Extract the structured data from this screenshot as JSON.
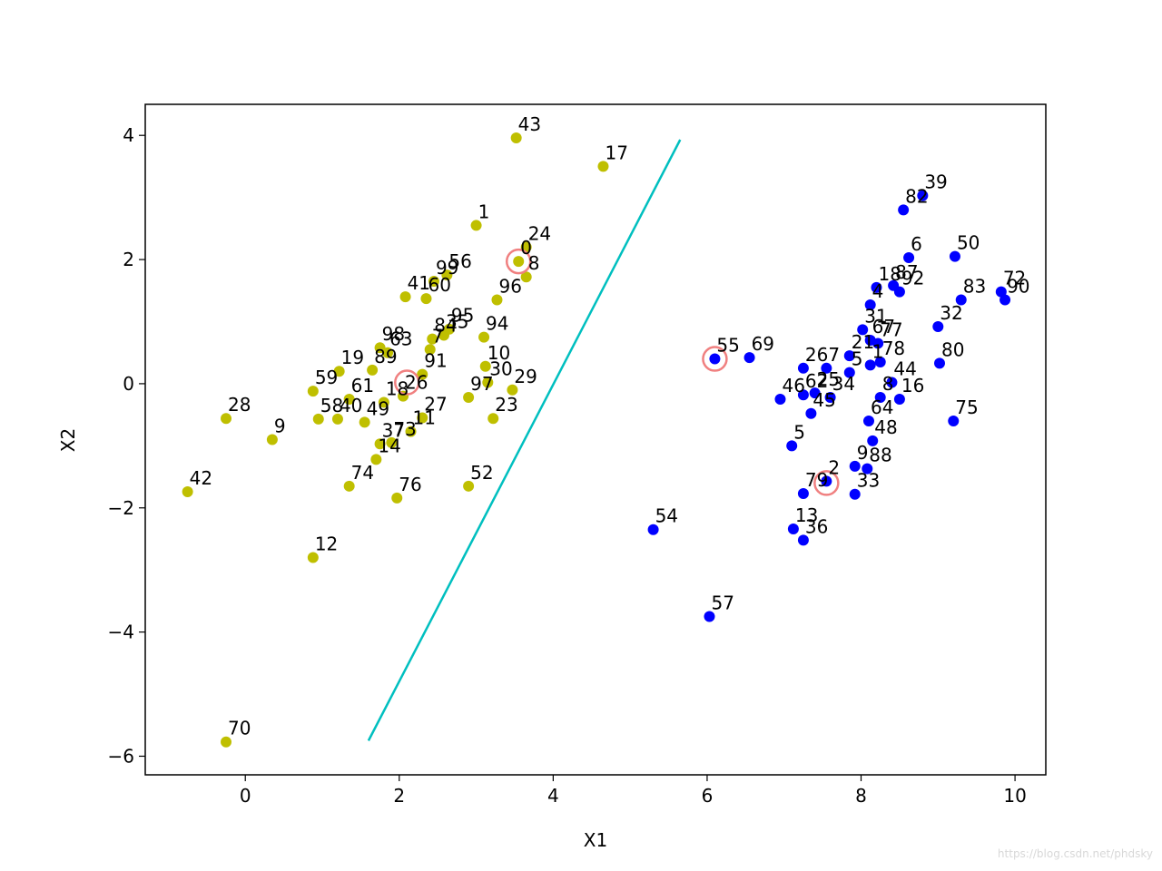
{
  "watermark": "https://blog.csdn.net/phdsky",
  "chart_data": {
    "type": "scatter",
    "title": "",
    "xlabel": "X1",
    "ylabel": "X2",
    "xlim": [
      -1.3,
      10.4
    ],
    "ylim": [
      -6.3,
      4.5
    ],
    "xticks": [
      0,
      2,
      4,
      6,
      8,
      10
    ],
    "yticks": [
      -6,
      -4,
      -2,
      0,
      2,
      4
    ],
    "grid": false,
    "colors": {
      "class_a": "#bfbf00",
      "class_b": "#0000ff",
      "line": "#00bfbf",
      "support": "#f08080"
    },
    "series": [
      {
        "class": "a",
        "points": [
          {
            "label": "0",
            "x": 3.55,
            "y": 1.97
          },
          {
            "label": "1",
            "x": 3.0,
            "y": 2.55
          },
          {
            "label": "24",
            "x": 3.65,
            "y": 2.2
          },
          {
            "label": "8",
            "x": 3.65,
            "y": 1.72
          },
          {
            "label": "43",
            "x": 3.52,
            "y": 3.96
          },
          {
            "label": "17",
            "x": 4.65,
            "y": 3.5
          },
          {
            "label": "56",
            "x": 2.62,
            "y": 1.75
          },
          {
            "label": "99",
            "x": 2.45,
            "y": 1.65
          },
          {
            "label": "41",
            "x": 2.08,
            "y": 1.4
          },
          {
            "label": "60",
            "x": 2.35,
            "y": 1.37
          },
          {
            "label": "96",
            "x": 3.27,
            "y": 1.35
          },
          {
            "label": "95",
            "x": 2.65,
            "y": 0.88
          },
          {
            "label": "35",
            "x": 2.58,
            "y": 0.78
          },
          {
            "label": "84",
            "x": 2.43,
            "y": 0.72
          },
          {
            "label": "94",
            "x": 3.1,
            "y": 0.75
          },
          {
            "label": "98",
            "x": 1.75,
            "y": 0.58
          },
          {
            "label": "63",
            "x": 1.85,
            "y": 0.5
          },
          {
            "label": "7",
            "x": 2.4,
            "y": 0.55
          },
          {
            "label": "89",
            "x": 1.65,
            "y": 0.22
          },
          {
            "label": "10",
            "x": 3.12,
            "y": 0.28
          },
          {
            "label": "19",
            "x": 1.22,
            "y": 0.2
          },
          {
            "label": "59",
            "x": 0.88,
            "y": -0.12
          },
          {
            "label": "91",
            "x": 2.3,
            "y": 0.15
          },
          {
            "label": "30",
            "x": 3.15,
            "y": 0.02
          },
          {
            "label": "29",
            "x": 3.47,
            "y": -0.1
          },
          {
            "label": "97",
            "x": 2.9,
            "y": -0.22
          },
          {
            "label": "61",
            "x": 1.35,
            "y": -0.25
          },
          {
            "label": "18",
            "x": 1.8,
            "y": -0.3
          },
          {
            "label": "26",
            "x": 2.05,
            "y": -0.2
          },
          {
            "label": "27",
            "x": 2.3,
            "y": -0.55
          },
          {
            "label": "23",
            "x": 3.22,
            "y": -0.56
          },
          {
            "label": "58",
            "x": 0.95,
            "y": -0.57
          },
          {
            "label": "40",
            "x": 1.2,
            "y": -0.57
          },
          {
            "label": "49",
            "x": 1.55,
            "y": -0.62
          },
          {
            "label": "11",
            "x": 2.15,
            "y": -0.77
          },
          {
            "label": "28",
            "x": -0.25,
            "y": -0.56
          },
          {
            "label": "9",
            "x": 0.35,
            "y": -0.9
          },
          {
            "label": "37",
            "x": 1.75,
            "y": -0.97
          },
          {
            "label": "73",
            "x": 1.9,
            "y": -0.95
          },
          {
            "label": "14",
            "x": 1.7,
            "y": -1.22
          },
          {
            "label": "42",
            "x": -0.75,
            "y": -1.74
          },
          {
            "label": "74",
            "x": 1.35,
            "y": -1.65
          },
          {
            "label": "76",
            "x": 1.97,
            "y": -1.84
          },
          {
            "label": "52",
            "x": 2.9,
            "y": -1.65
          },
          {
            "label": "12",
            "x": 0.88,
            "y": -2.8
          },
          {
            "label": "70",
            "x": -0.25,
            "y": -5.77
          }
        ]
      },
      {
        "class": "b",
        "points": [
          {
            "label": "39",
            "x": 8.8,
            "y": 3.03
          },
          {
            "label": "82",
            "x": 8.55,
            "y": 2.8
          },
          {
            "label": "6",
            "x": 8.62,
            "y": 2.03
          },
          {
            "label": "50",
            "x": 9.22,
            "y": 2.05
          },
          {
            "label": "18",
            "x": 8.2,
            "y": 1.55
          },
          {
            "label": "87",
            "x": 8.42,
            "y": 1.58
          },
          {
            "label": "92",
            "x": 8.5,
            "y": 1.48
          },
          {
            "label": "72",
            "x": 9.82,
            "y": 1.48
          },
          {
            "label": "90",
            "x": 9.87,
            "y": 1.35
          },
          {
            "label": "83",
            "x": 9.3,
            "y": 1.35
          },
          {
            "label": "4",
            "x": 8.12,
            "y": 1.27
          },
          {
            "label": "32",
            "x": 9.0,
            "y": 0.92
          },
          {
            "label": "31",
            "x": 8.02,
            "y": 0.87
          },
          {
            "label": "67",
            "x": 8.12,
            "y": 0.7
          },
          {
            "label": "77",
            "x": 8.22,
            "y": 0.65
          },
          {
            "label": "80",
            "x": 9.02,
            "y": 0.33
          },
          {
            "label": "55",
            "x": 6.1,
            "y": 0.4
          },
          {
            "label": "69",
            "x": 6.55,
            "y": 0.42
          },
          {
            "label": "26",
            "x": 7.25,
            "y": 0.25
          },
          {
            "label": "7",
            "x": 7.55,
            "y": 0.25
          },
          {
            "label": "21",
            "x": 7.85,
            "y": 0.45
          },
          {
            "label": "5",
            "x": 7.85,
            "y": 0.18
          },
          {
            "label": "1",
            "x": 8.12,
            "y": 0.3
          },
          {
            "label": "78",
            "x": 8.25,
            "y": 0.35
          },
          {
            "label": "44",
            "x": 8.4,
            "y": 0.02
          },
          {
            "label": "46",
            "x": 6.95,
            "y": -0.25
          },
          {
            "label": "62",
            "x": 7.25,
            "y": -0.18
          },
          {
            "label": "25",
            "x": 7.4,
            "y": -0.15
          },
          {
            "label": "34",
            "x": 7.6,
            "y": -0.22
          },
          {
            "label": "45",
            "x": 7.35,
            "y": -0.48
          },
          {
            "label": "8",
            "x": 8.25,
            "y": -0.22
          },
          {
            "label": "16",
            "x": 8.5,
            "y": -0.25
          },
          {
            "label": "64",
            "x": 8.1,
            "y": -0.6
          },
          {
            "label": "48",
            "x": 8.15,
            "y": -0.92
          },
          {
            "label": "75",
            "x": 9.2,
            "y": -0.6
          },
          {
            "label": "5",
            "x": 7.1,
            "y": -1.0
          },
          {
            "label": "9",
            "x": 7.92,
            "y": -1.33
          },
          {
            "label": "88",
            "x": 8.08,
            "y": -1.37
          },
          {
            "label": "2",
            "x": 7.55,
            "y": -1.57
          },
          {
            "label": "79",
            "x": 7.25,
            "y": -1.77
          },
          {
            "label": "33",
            "x": 7.92,
            "y": -1.78
          },
          {
            "label": "13",
            "x": 7.12,
            "y": -2.34
          },
          {
            "label": "36",
            "x": 7.25,
            "y": -2.52
          },
          {
            "label": "54",
            "x": 5.3,
            "y": -2.35
          },
          {
            "label": "57",
            "x": 6.03,
            "y": -3.75
          }
        ]
      }
    ],
    "support_vectors": [
      {
        "x": 3.55,
        "y": 1.97
      },
      {
        "x": 2.1,
        "y": 0.02
      },
      {
        "x": 6.1,
        "y": 0.4
      },
      {
        "x": 7.55,
        "y": -1.6
      }
    ],
    "decision_line": [
      {
        "x": 1.6,
        "y": -5.75
      },
      {
        "x": 5.65,
        "y": 3.93
      }
    ]
  }
}
